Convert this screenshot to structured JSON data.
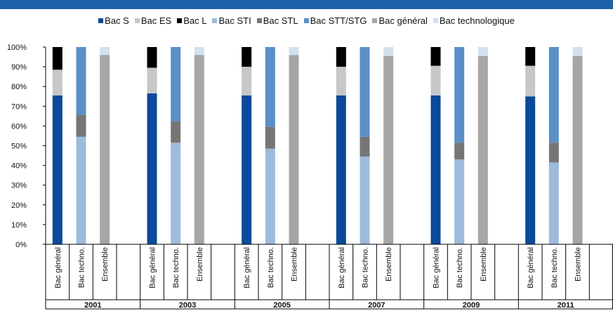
{
  "colors": {
    "top_bar": "#1f61a8",
    "bac_s": "#0b4a9a",
    "bac_es": "#c7c7c7",
    "bac_l": "#000000",
    "bac_sti": "#9dbbdc",
    "bac_stl": "#767676",
    "bac_stt_stg": "#5b8fc7",
    "bac_general": "#a6a6a6",
    "bac_technologique": "#d3e0ee"
  },
  "legend": [
    {
      "label": "Bac S",
      "color": "#0b4a9a"
    },
    {
      "label": "Bac ES",
      "color": "#c7c7c7"
    },
    {
      "label": "Bac L",
      "color": "#000000"
    },
    {
      "label": "Bac STI",
      "color": "#9dbbdc"
    },
    {
      "label": "Bac STL",
      "color": "#767676"
    },
    {
      "label": "Bac STT/STG",
      "color": "#5b8fc7"
    },
    {
      "label": "Bac général",
      "color": "#a6a6a6"
    },
    {
      "label": "Bac technologique",
      "color": "#d3e0ee"
    }
  ],
  "chart_data": {
    "type": "bar",
    "stacked": true,
    "ylim": [
      0,
      100
    ],
    "yticks": [
      "0%",
      "10%",
      "20%",
      "30%",
      "40%",
      "50%",
      "60%",
      "70%",
      "80%",
      "90%",
      "100%"
    ],
    "legend_position": "top",
    "grid": false,
    "subcategories": [
      "Bac général",
      "Bac techno.",
      "Ensemble"
    ],
    "groups": [
      {
        "year": "2001",
        "bars": [
          [
            {
              "series": "Bac S",
              "value": 75.5
            },
            {
              "series": "Bac ES",
              "value": 13
            },
            {
              "series": "Bac L",
              "value": 11.5
            }
          ],
          [
            {
              "series": "Bac STI",
              "value": 54.5
            },
            {
              "series": "Bac STL",
              "value": 11
            },
            {
              "series": "Bac STT/STG",
              "value": 34.5
            }
          ],
          [
            {
              "series": "Bac général",
              "value": 96
            },
            {
              "series": "Bac technologique",
              "value": 4
            }
          ]
        ]
      },
      {
        "year": "2003",
        "bars": [
          [
            {
              "series": "Bac S",
              "value": 76.5
            },
            {
              "series": "Bac ES",
              "value": 13
            },
            {
              "series": "Bac L",
              "value": 10.5
            }
          ],
          [
            {
              "series": "Bac STI",
              "value": 51.5
            },
            {
              "series": "Bac STL",
              "value": 11
            },
            {
              "series": "Bac STT/STG",
              "value": 37.5
            }
          ],
          [
            {
              "series": "Bac général",
              "value": 96
            },
            {
              "series": "Bac technologique",
              "value": 4
            }
          ]
        ]
      },
      {
        "year": "2005",
        "bars": [
          [
            {
              "series": "Bac S",
              "value": 75.5
            },
            {
              "series": "Bac ES",
              "value": 14.5
            },
            {
              "series": "Bac L",
              "value": 10
            }
          ],
          [
            {
              "series": "Bac STI",
              "value": 48.5
            },
            {
              "series": "Bac STL",
              "value": 11
            },
            {
              "series": "Bac STT/STG",
              "value": 40.5
            }
          ],
          [
            {
              "series": "Bac général",
              "value": 96
            },
            {
              "series": "Bac technologique",
              "value": 4
            }
          ]
        ]
      },
      {
        "year": "2007",
        "bars": [
          [
            {
              "series": "Bac S",
              "value": 75.5
            },
            {
              "series": "Bac ES",
              "value": 14.5
            },
            {
              "series": "Bac L",
              "value": 10
            }
          ],
          [
            {
              "series": "Bac STI",
              "value": 44.5
            },
            {
              "series": "Bac STL",
              "value": 10
            },
            {
              "series": "Bac STT/STG",
              "value": 45.5
            }
          ],
          [
            {
              "series": "Bac général",
              "value": 95.5
            },
            {
              "series": "Bac technologique",
              "value": 4.5
            }
          ]
        ]
      },
      {
        "year": "2009",
        "bars": [
          [
            {
              "series": "Bac S",
              "value": 75.5
            },
            {
              "series": "Bac ES",
              "value": 15
            },
            {
              "series": "Bac L",
              "value": 9.5
            }
          ],
          [
            {
              "series": "Bac STI",
              "value": 43
            },
            {
              "series": "Bac STL",
              "value": 8.5
            },
            {
              "series": "Bac STT/STG",
              "value": 48.5
            }
          ],
          [
            {
              "series": "Bac général",
              "value": 95.5
            },
            {
              "series": "Bac technologique",
              "value": 4.5
            }
          ]
        ]
      },
      {
        "year": "2011",
        "bars": [
          [
            {
              "series": "Bac S",
              "value": 75
            },
            {
              "series": "Bac ES",
              "value": 15.5
            },
            {
              "series": "Bac L",
              "value": 9.5
            }
          ],
          [
            {
              "series": "Bac STI",
              "value": 41.5
            },
            {
              "series": "Bac STL",
              "value": 10
            },
            {
              "series": "Bac STT/STG",
              "value": 48.5
            }
          ],
          [
            {
              "series": "Bac général",
              "value": 95.5
            },
            {
              "series": "Bac technologique",
              "value": 4.5
            }
          ]
        ]
      }
    ]
  }
}
